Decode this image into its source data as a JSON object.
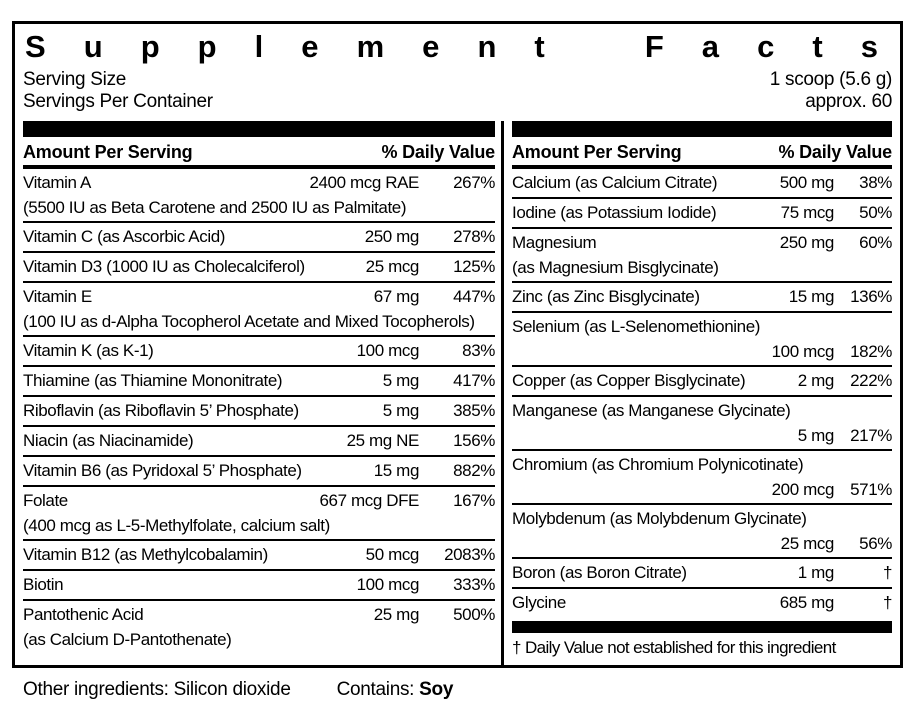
{
  "title": "Supplement Facts",
  "serving": {
    "size_label": "Serving Size",
    "size_value": "1 scoop (5.6 g)",
    "per_container_label": "Servings Per Container",
    "per_container_value": "approx. 60"
  },
  "table": {
    "amount_header": "Amount Per Serving",
    "dv_header": "% Daily Value",
    "left_rows": [
      {
        "name": "Vitamin A",
        "amount": "2400 mcg RAE",
        "dv": "267%",
        "sub": "(5500 IU as Beta Carotene and 2500 IU as Palmitate)"
      },
      {
        "name": "Vitamin C (as Ascorbic Acid)",
        "amount": "250 mg",
        "dv": "278%"
      },
      {
        "name": "Vitamin D3 (1000 IU as Cholecalciferol)",
        "amount": "25 mcg",
        "dv": "125%"
      },
      {
        "name": "Vitamin E",
        "amount": "67 mg",
        "dv": "447%",
        "sub": "(100 IU as d-Alpha Tocopherol Acetate and Mixed Tocopherols)"
      },
      {
        "name": "Vitamin K (as K-1)",
        "amount": "100 mcg",
        "dv": "83%"
      },
      {
        "name": "Thiamine (as Thiamine Mononitrate)",
        "amount": "5 mg",
        "dv": "417%"
      },
      {
        "name": "Riboflavin (as Riboflavin 5’ Phosphate)",
        "amount": "5 mg",
        "dv": "385%"
      },
      {
        "name": "Niacin (as Niacinamide)",
        "amount": "25 mg NE",
        "dv": "156%"
      },
      {
        "name": "Vitamin B6 (as Pyridoxal 5’ Phosphate)",
        "amount": "15 mg",
        "dv": "882%"
      },
      {
        "name": "Folate",
        "amount": "667 mcg DFE",
        "dv": "167%",
        "sub": "(400 mcg as L-5-Methylfolate, calcium salt)"
      },
      {
        "name": "Vitamin B12 (as Methylcobalamin)",
        "amount": "50 mcg",
        "dv": "2083%"
      },
      {
        "name": "Biotin",
        "amount": "100 mcg",
        "dv": "333%"
      },
      {
        "name": "Pantothenic Acid",
        "amount": "25 mg",
        "dv": "500%",
        "sub": "(as Calcium D-Pantothenate)"
      }
    ],
    "right_rows": [
      {
        "name": "Calcium (as Calcium Citrate)",
        "amount": "500 mg",
        "dv": "38%"
      },
      {
        "name": "Iodine (as Potassium Iodide)",
        "amount": "75 mcg",
        "dv": "50%"
      },
      {
        "name": "Magnesium",
        "amount": "250 mg",
        "dv": "60%",
        "sub": "(as Magnesium Bisglycinate)"
      },
      {
        "name": "Zinc (as Zinc Bisglycinate)",
        "amount": "15 mg",
        "dv": "136%"
      },
      {
        "name": "Selenium (as L-Selenomethionine)",
        "amount": "100 mcg",
        "dv": "182%",
        "wrap": true
      },
      {
        "name": "Copper (as Copper Bisglycinate)",
        "amount": "2 mg",
        "dv": "222%"
      },
      {
        "name": "Manganese (as Manganese Glycinate)",
        "amount": "5 mg",
        "dv": "217%",
        "wrap": true
      },
      {
        "name": "Chromium (as Chromium Polynicotinate)",
        "amount": "200 mcg",
        "dv": "571%",
        "wrap": true
      },
      {
        "name": "Molybdenum (as Molybdenum Glycinate)",
        "amount": "25 mcg",
        "dv": "56%",
        "wrap": true
      },
      {
        "name": "Boron (as Boron Citrate)",
        "amount": "1 mg",
        "dv": "†"
      },
      {
        "name": "Glycine",
        "amount": "685 mg",
        "dv": "†"
      }
    ],
    "footnote": "† Daily Value not established for this ingredient"
  },
  "footer": {
    "other_label": "Other ingredients:",
    "other_value": "Silicon dioxide",
    "contains_label": "Contains:",
    "contains_value": "Soy"
  },
  "colors": {
    "text": "#000000",
    "background": "#ffffff",
    "rule": "#000000"
  }
}
